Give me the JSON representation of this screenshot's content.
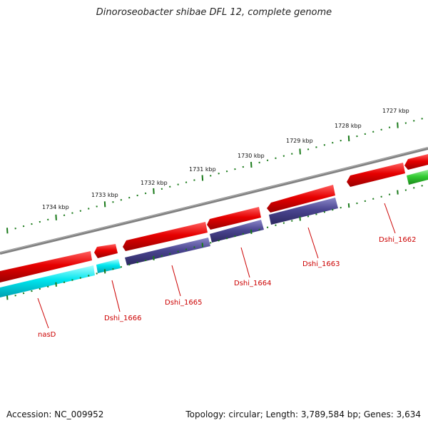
{
  "title": "Dinoroseobacter shibae DFL 12, complete genome",
  "footer": {
    "accession": "Accession: NC_009952",
    "stats": "Topology: circular; Length: 3,789,584 bp; Genes: 3,634"
  },
  "colors": {
    "backbone": "#808080",
    "forward_cds": "#e60000",
    "reverse_cds": "#00e5ee",
    "reverse_cds_purple": "#4a4590",
    "rna": "#33cc33",
    "ticks": "#1a7a1a",
    "label": "#cc0000"
  },
  "ticks": [
    {
      "label": "1734 kbp"
    },
    {
      "label": "1733 kbp"
    },
    {
      "label": "1732 kbp"
    },
    {
      "label": "1731 kbp"
    },
    {
      "label": "1730 kbp"
    },
    {
      "label": "1729 kbp"
    },
    {
      "label": "1728 kbp"
    },
    {
      "label": "1727 kbp"
    }
  ],
  "genes": [
    {
      "label": "nasD"
    },
    {
      "label": "Dshi_1666"
    },
    {
      "label": "Dshi_1665"
    },
    {
      "label": "Dshi_1664"
    },
    {
      "label": "Dshi_1663"
    },
    {
      "label": "Dshi_1662"
    }
  ]
}
